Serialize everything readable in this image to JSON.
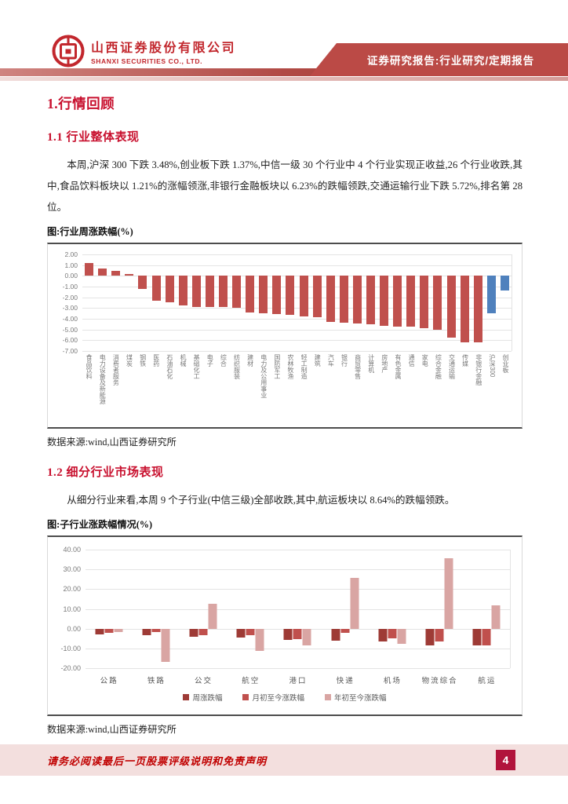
{
  "header": {
    "company_name_cn": "山西证券股份有限公司",
    "company_name_en": "SHANXI SECURITIES CO., LTD.",
    "banner_label": "证券研究报告:行业研究/定期报告",
    "banner_color": "#bb4a46",
    "brand_red": "#c2272d"
  },
  "sections": {
    "h1": "1.行情回顾",
    "h11": "1.1 行业整体表现",
    "p1": "本周,沪深 300 下跌 3.48%,创业板下跌 1.37%,中信一级 30 个行业中 4 个行业实现正收益,26 个行业收跌,其中,食品饮料板块以 1.21%的涨幅领涨,非银行金融板块以 6.23%的跌幅领跌,交通运输行业下跌 5.72%,排名第 28 位。",
    "fig1_title": "图:行业周涨跌幅(%)",
    "source1": "数据来源:wind,山西证券研究所",
    "h12": "1.2 细分行业市场表现",
    "p2": "从细分行业来看,本周 9 个子行业(中信三级)全部收跌,其中,航运板块以 8.64%的跌幅领跌。",
    "fig2_title": "图:子行业涨跌幅情况(%)",
    "source2": "数据来源:wind,山西证券研究所"
  },
  "footer": {
    "disclaimer": "请务必阅读最后一页股票评级说明和免责声明",
    "page_number": "4",
    "band_color": "#f3dfde",
    "badge_color": "#b1143c"
  },
  "chart_data": [
    {
      "type": "bar",
      "title": "行业周涨跌幅(%)",
      "categories": [
        "食品饮料",
        "电力设备及新能源",
        "消费者服务",
        "煤炭",
        "钢铁",
        "医药",
        "石油石化",
        "机械",
        "基础化工",
        "电子",
        "综合",
        "纺织服装",
        "建材",
        "电力及公用事业",
        "国防军工",
        "农林牧渔",
        "轻工制造",
        "建筑",
        "汽车",
        "银行",
        "商贸零售",
        "计算机",
        "房地产",
        "有色金属",
        "通信",
        "家电",
        "综合金融",
        "交通运输",
        "传媒",
        "非银行金融",
        "沪深300",
        "创业板"
      ],
      "values": [
        1.21,
        0.69,
        0.47,
        0.15,
        -1.2,
        -2.35,
        -2.5,
        -2.74,
        -2.87,
        -2.9,
        -2.9,
        -2.96,
        -3.4,
        -3.48,
        -3.53,
        -3.6,
        -3.77,
        -3.85,
        -4.26,
        -4.39,
        -4.46,
        -4.51,
        -4.63,
        -4.75,
        -4.75,
        -4.88,
        -5.0,
        -5.72,
        -6.18,
        -6.23,
        -3.48,
        -1.37
      ],
      "ylim": [
        -7,
        2
      ],
      "yticks": [
        "2.00",
        "1.00",
        "0.00",
        "-1.00",
        "-2.00",
        "-3.00",
        "-4.00",
        "-5.00",
        "-6.00",
        "-7.00"
      ],
      "bar_color": "#c0504d",
      "index_color": "#4f81bd",
      "index_categories": [
        "沪深300",
        "创业板"
      ],
      "grid": true,
      "legend": false
    },
    {
      "type": "grouped-bar",
      "title": "子行业涨跌幅情况(%)",
      "categories": [
        "公路",
        "铁路",
        "公交",
        "航空",
        "港口",
        "快递",
        "机场",
        "物流综合",
        "航运"
      ],
      "series": [
        {
          "name": "周涨跌幅",
          "color": "#9e3b36",
          "values": [
            -2.9,
            -3.2,
            -4.2,
            -4.6,
            -5.8,
            -6.0,
            -6.6,
            -8.6,
            -8.64
          ]
        },
        {
          "name": "月初至今涨跌幅",
          "color": "#c0504d",
          "values": [
            -2.0,
            -1.6,
            -3.3,
            -3.3,
            -5.3,
            -2.3,
            -4.9,
            -6.6,
            -8.5
          ]
        },
        {
          "name": "年初至今涨跌幅",
          "color": "#d9a5a3",
          "values": [
            -1.6,
            -16.9,
            12.6,
            -11.2,
            -8.6,
            25.5,
            -7.6,
            35.7,
            11.7
          ]
        }
      ],
      "ylim": [
        -20,
        40
      ],
      "yticks": [
        "40.00",
        "30.00",
        "20.00",
        "10.00",
        "0.00",
        "-10.00",
        "-20.00"
      ],
      "grid": true,
      "legend_position": "bottom"
    }
  ]
}
